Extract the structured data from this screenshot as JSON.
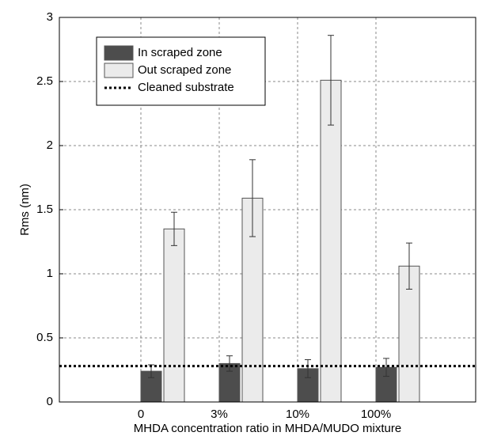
{
  "chart_data": {
    "type": "bar",
    "x_label": "MHDA concentration ratio in MHDA/MUDO mixture",
    "y_label": "Rms (nm)",
    "categories": [
      "0",
      "3%",
      "10%",
      "100%"
    ],
    "series": [
      {
        "name": "In scraped zone",
        "color": "#4d4d4d",
        "values": [
          0.24,
          0.3,
          0.26,
          0.27
        ],
        "errors": [
          0.05,
          0.06,
          0.07,
          0.07
        ]
      },
      {
        "name": "Out scraped zone",
        "color": "#ebebeb",
        "values": [
          1.35,
          1.59,
          2.51,
          1.06
        ],
        "errors": [
          0.13,
          0.3,
          0.35,
          0.18
        ]
      }
    ],
    "reference_lines": [
      {
        "name": "Cleaned substrate",
        "value": 0.28,
        "color": "#000000"
      }
    ],
    "ylim": [
      0,
      3
    ],
    "yticks": [
      0,
      0.5,
      1,
      1.5,
      2,
      2.5,
      3
    ],
    "grid": true,
    "legend": "upper left"
  }
}
